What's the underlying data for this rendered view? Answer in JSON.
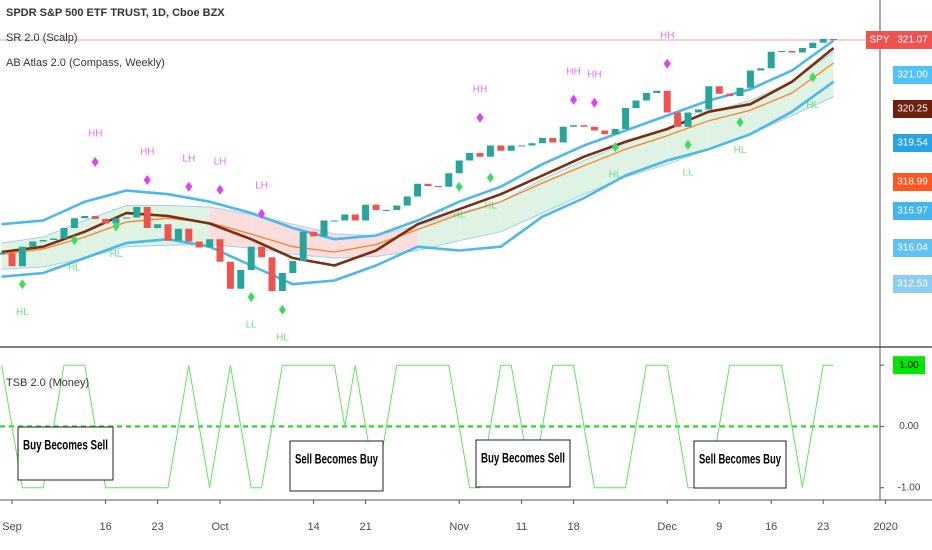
{
  "chart_data": [
    {
      "type": "candlestick",
      "title": "SPDR S&P 500 ETF TRUST, 1D, Cboe BZX",
      "indicators": [
        "SR 2.0 (Scalp)",
        "AB Atlas 2.0 (Compass, Weekly)"
      ],
      "categories": [
        null,
        "Sep",
        null,
        null,
        null,
        null,
        null,
        null,
        null,
        null,
        "16",
        null,
        null,
        null,
        null,
        "23",
        null,
        null,
        null,
        null,
        null,
        "Oct",
        null,
        null,
        null,
        null,
        null,
        null,
        null,
        null,
        "14",
        null,
        null,
        null,
        null,
        "21",
        null,
        null,
        null,
        null,
        null,
        null,
        null,
        null,
        "Nov",
        null,
        null,
        null,
        null,
        null,
        "11",
        null,
        null,
        null,
        null,
        "18",
        null,
        null,
        null,
        null,
        null,
        null,
        null,
        null,
        "Dec",
        null,
        null,
        null,
        null,
        "9",
        null,
        null,
        null,
        null,
        "16",
        null,
        null,
        null,
        null,
        "23",
        null,
        null,
        null,
        null,
        null,
        "2020"
      ],
      "closes": [
        292.6,
        290.9,
        293.5,
        294.2,
        294.4,
        294.6,
        296.0,
        297.3,
        297.6,
        297.2,
        296.6,
        297.3,
        297.4,
        298.8,
        296.0,
        296.5,
        294.3,
        295.9,
        294.2,
        293.4,
        294.5,
        291.5,
        287.9,
        290.4,
        293.5,
        292.1,
        287.6,
        290.0,
        291.6,
        295.5,
        294.9,
        297.0,
        297.0,
        297.8,
        297.0,
        299.1,
        298.4,
        298.4,
        299.0,
        300.2,
        301.9,
        301.6,
        301.5,
        303.3,
        305.0,
        306.0,
        305.5,
        307.0,
        306.3,
        307.0,
        307.0,
        307.3,
        308.0,
        307.4,
        309.5,
        309.7,
        309.5,
        309.0,
        308.5,
        309.2,
        312.0,
        313.0,
        314.0,
        314.3,
        311.4,
        309.5,
        311.4,
        311.8,
        314.9,
        313.9,
        313.6,
        314.7,
        317.0,
        317.3,
        319.5,
        319.6,
        319.4,
        320.0,
        320.7,
        321.2,
        321.07,
        null,
        null,
        null,
        null,
        null
      ],
      "up_color": "#26a69a",
      "down_color": "#ef5350",
      "ylim": [
        280.4,
        326.4
      ],
      "overlays": [
        {
          "color": "#7b2d0e",
          "width": 2.6,
          "x": [
            0,
            4,
            8,
            12,
            16,
            20,
            24,
            28,
            32,
            36,
            40,
            44,
            48,
            52,
            56,
            60,
            64,
            68,
            72,
            76,
            80
          ],
          "values": [
            292.8,
            293.5,
            295.5,
            298.0,
            297.6,
            296.6,
            294.5,
            292.0,
            291.0,
            293.0,
            296.5,
            298.5,
            300.5,
            303.0,
            305.5,
            307.5,
            309.2,
            311.5,
            312.5,
            315.5,
            320.0
          ]
        },
        {
          "color": "#ff7f2a",
          "width": 1.3,
          "x": [
            0,
            4,
            8,
            12,
            16,
            20,
            24,
            28,
            32,
            36,
            40,
            44,
            48,
            52,
            56,
            60,
            64,
            68,
            72,
            76,
            80
          ],
          "values": [
            292.5,
            293.2,
            294.8,
            296.8,
            297.3,
            296.7,
            295.2,
            293.5,
            292.8,
            293.8,
            295.8,
            297.8,
            299.5,
            302.0,
            304.3,
            306.5,
            308.3,
            310.3,
            311.7,
            314.0,
            318.0
          ]
        },
        {
          "color": "#4db8ea",
          "width": 2.6,
          "x": [
            0,
            4,
            8,
            12,
            16,
            20,
            24,
            28,
            32,
            36,
            40,
            44,
            48,
            52,
            56,
            60,
            64,
            68,
            72,
            76,
            80
          ],
          "values": [
            296.5,
            297.0,
            299.5,
            301.0,
            300.5,
            299.5,
            298.0,
            296.0,
            294.5,
            295.0,
            297.0,
            299.5,
            301.5,
            304.5,
            307.0,
            309.0,
            311.0,
            313.0,
            314.5,
            317.0,
            321.0
          ]
        },
        {
          "color": "#4db8ea",
          "width": 2.6,
          "x": [
            0,
            4,
            8,
            12,
            16,
            20,
            24,
            28,
            32,
            36,
            40,
            44,
            48,
            52,
            56,
            60,
            64,
            68,
            72,
            76,
            80
          ],
          "values": [
            289.5,
            290.0,
            292.0,
            294.0,
            294.5,
            293.5,
            291.0,
            288.5,
            289.0,
            291.0,
            293.5,
            293.0,
            293.5,
            297.5,
            300.0,
            303.0,
            305.0,
            306.5,
            308.5,
            311.5,
            315.5
          ]
        }
      ],
      "cloud": {
        "x": [
          0,
          4,
          8,
          12,
          16,
          20,
          24,
          28,
          32,
          36,
          40,
          44,
          48,
          52,
          56,
          60,
          64,
          68,
          72,
          76,
          80
        ],
        "upper": [
          294.0,
          294.8,
          297.0,
          299.0,
          299.0,
          298.8,
          297.8,
          296.5,
          295.2,
          295.0,
          296.3,
          298.0,
          299.5,
          302.5,
          305.0,
          307.3,
          309.3,
          311.4,
          313.0,
          315.5,
          319.5
        ],
        "lower": [
          290.5,
          290.8,
          292.0,
          293.5,
          293.7,
          293.8,
          293.3,
          292.5,
          292.0,
          292.2,
          293.0,
          294.3,
          295.5,
          298.0,
          300.5,
          302.8,
          304.5,
          306.5,
          308.5,
          311.0,
          313.5
        ],
        "bull_color": "#d6f0dc",
        "bear_color": "#f9d6d6",
        "line_color": "#9fd3ea"
      },
      "markers": [
        {
          "label": "HH",
          "index": 9,
          "value": 304.8,
          "color": "#e040fb",
          "position": "above"
        },
        {
          "label": "HH",
          "index": 14,
          "value": 302.4,
          "color": "#e040fb",
          "position": "above"
        },
        {
          "label": "LH",
          "index": 18,
          "value": 301.5,
          "color": "#e040fb",
          "position": "above"
        },
        {
          "label": "LH",
          "index": 21,
          "value": 301.1,
          "color": "#e040fb",
          "position": "above"
        },
        {
          "label": "LH",
          "index": 25,
          "value": 297.9,
          "color": "#e040fb",
          "position": "above"
        },
        {
          "label": "HH",
          "index": 46,
          "value": 310.7,
          "color": "#e040fb",
          "position": "above"
        },
        {
          "label": "HH",
          "index": 55,
          "value": 313.1,
          "color": "#e040fb",
          "position": "above"
        },
        {
          "label": "HH",
          "index": 57,
          "value": 312.7,
          "color": "#e040fb",
          "position": "above"
        },
        {
          "label": "HH",
          "index": 64,
          "value": 317.9,
          "color": "#e040fb",
          "position": "above"
        },
        {
          "label": "HL",
          "index": 2,
          "value": 288.5,
          "color": "#3ddc5c",
          "position": "below"
        },
        {
          "label": "HL",
          "index": 7,
          "value": 294.4,
          "color": "#3ddc5c",
          "position": "below"
        },
        {
          "label": "HL",
          "index": 11,
          "value": 296.2,
          "color": "#3ddc5c",
          "position": "below"
        },
        {
          "label": "LL",
          "index": 24,
          "value": 286.8,
          "color": "#3ddc5c",
          "position": "below"
        },
        {
          "label": "HL",
          "index": 27,
          "value": 285.1,
          "color": "#3ddc5c",
          "position": "below"
        },
        {
          "label": "HL",
          "index": 44,
          "value": 301.5,
          "color": "#3ddc5c",
          "position": "below"
        },
        {
          "label": "HL",
          "index": 47,
          "value": 302.7,
          "color": "#3ddc5c",
          "position": "below"
        },
        {
          "label": "HL",
          "index": 59,
          "value": 306.8,
          "color": "#3ddc5c",
          "position": "below"
        },
        {
          "label": "LL",
          "index": 66,
          "value": 307.1,
          "color": "#3ddc5c",
          "position": "below"
        },
        {
          "label": "HL",
          "index": 71,
          "value": 310.1,
          "color": "#3ddc5c",
          "position": "below"
        },
        {
          "label": "HL",
          "index": 78,
          "value": 316.1,
          "color": "#3ddc5c",
          "position": "below"
        }
      ],
      "last_price": {
        "symbol": "SPY",
        "value": 321.07,
        "color": "#ef5350"
      },
      "price_tags": [
        {
          "label": "321.00",
          "color": "#4fc3f7"
        },
        {
          "label": "320.25",
          "color": "#6d1f0b"
        },
        {
          "label": "319.54",
          "color": "#29a3e6"
        },
        {
          "label": "318.99",
          "color": "#ff5722"
        },
        {
          "label": "316.97",
          "color": "#42b4ee"
        },
        {
          "label": "316.04",
          "color": "#5fc3f2"
        },
        {
          "label": "312.53",
          "color": "#8ecdf2"
        }
      ]
    },
    {
      "type": "line",
      "title": "TSB 2.0 (Money)",
      "values": [
        1,
        0,
        -1,
        -1,
        -1,
        0,
        1,
        1,
        1,
        0,
        -1,
        -1,
        -1,
        -1,
        -1,
        -1,
        -1,
        0,
        1,
        0,
        -1,
        0,
        1,
        0,
        -1,
        -1,
        0,
        1,
        1,
        1,
        1,
        1,
        1,
        0,
        1,
        0,
        -1,
        0,
        1,
        1,
        1,
        1,
        1,
        1,
        0,
        -1,
        -1,
        0,
        1,
        1,
        0,
        -1,
        0,
        1,
        1,
        1,
        0,
        -1,
        -1,
        -1,
        -1,
        0,
        1,
        1,
        1,
        0,
        -1,
        -1,
        -1,
        0,
        1,
        1,
        1,
        1,
        1,
        1,
        0,
        -1,
        0,
        1,
        1,
        null,
        null,
        null,
        null,
        null
      ],
      "color": "#5ee65e",
      "ylim": [
        -1.2,
        1.28
      ],
      "yticks": [
        {
          "value": 1,
          "label": "1.00"
        },
        {
          "value": 0,
          "label": "0.00"
        },
        {
          "value": -1,
          "label": "-1.00"
        }
      ],
      "level_line": {
        "value": 0,
        "color": "#1ed81e"
      },
      "current_color": "#00e600",
      "annotations": [
        {
          "text": "Buy Becomes Sell"
        },
        {
          "text": "Sell Becomes Buy"
        },
        {
          "text": "Buy Becomes Sell"
        },
        {
          "text": "Sell Becomes Buy"
        }
      ]
    }
  ]
}
